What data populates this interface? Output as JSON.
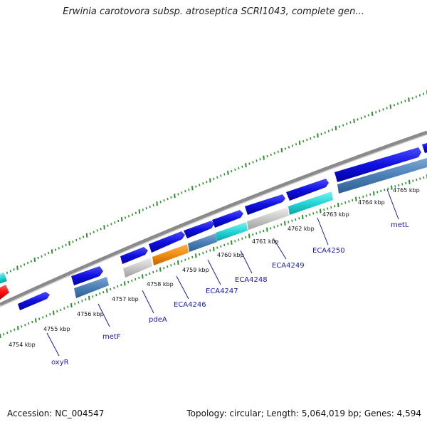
{
  "title": "Erwinia carotovora subsp. atroseptica SCRI1043, complete gen...",
  "footer": {
    "accession": "Accession: NC_004547",
    "topology": "Topology: circular; Length: 5,064,019 bp; Genes: 4,594"
  },
  "colors": {
    "backbone": "#8a8a8a",
    "tick": "#2f8f2f",
    "forward_cds": "#1010e0",
    "reverse_cds": "#4a7fb5",
    "highlight_cyan": "#22d6d6",
    "highlight_orange": "#f08c10",
    "highlight_grey": "#c8c8c8",
    "edge_red": "#ff1010",
    "label_line": "#1a1aa8"
  },
  "kbp_labels": [
    "4754 kbp",
    "4755 kbp",
    "4756 kbp",
    "4757 kbp",
    "4758 kbp",
    "4759 kbp",
    "4760 kbp",
    "4761 kbp",
    "4762 kbp",
    "4763 kbp",
    "4764 kbp",
    "4765 kbp"
  ],
  "gene_labels": [
    "oxyR",
    "metF",
    "pdeA",
    "ECA4246",
    "ECA4247",
    "ECA4248",
    "ECA4249",
    "ECA4250",
    "metL"
  ]
}
